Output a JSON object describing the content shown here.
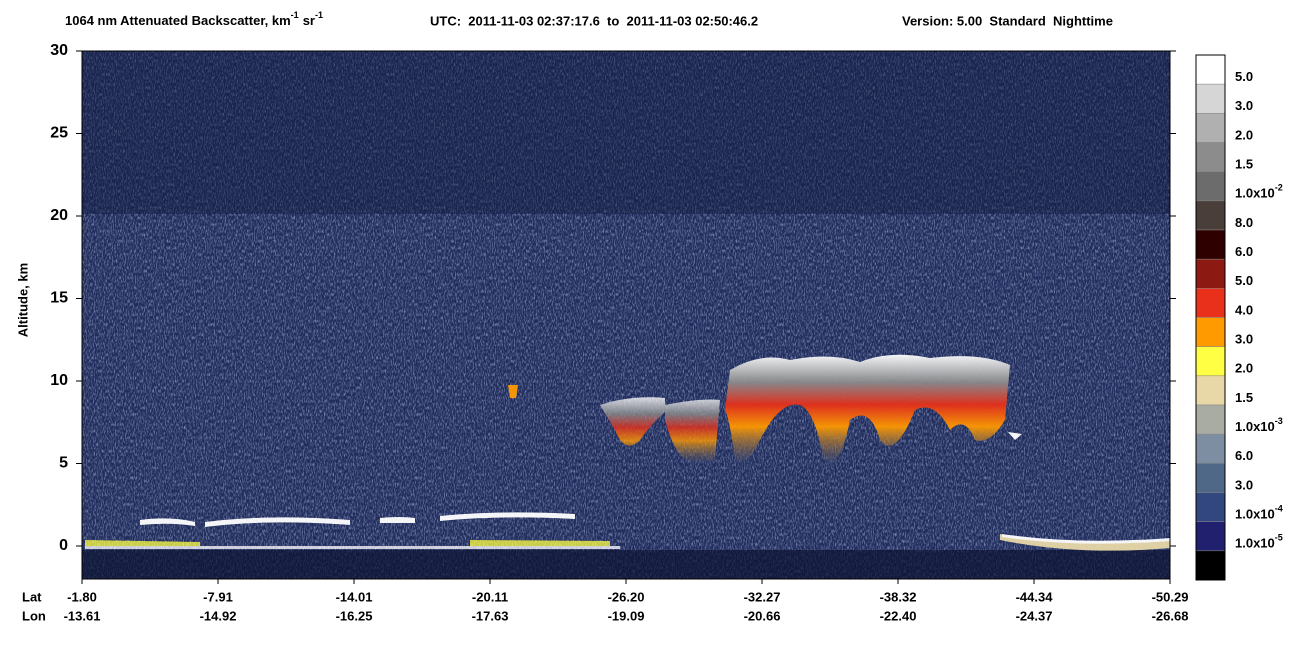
{
  "chart_data": {
    "type": "heatmap",
    "title": {
      "main": "1064 nm Attenuated Backscatter, km",
      "sup1": "-1",
      "unit2": "sr",
      "sup2": "-1",
      "utc": "UTC:  2011-11-03 02:37:17.6  to  2011-11-03 02:50:46.2",
      "version": "Version: 5.00  Standard  Nighttime"
    },
    "ylabel": "Altitude, km",
    "ylim": [
      -2,
      30
    ],
    "yticks": [
      0,
      5,
      10,
      15,
      20,
      25,
      30
    ],
    "x_row_names": [
      "Lat",
      "Lon"
    ],
    "x_labels": {
      "lat": [
        "-1.80",
        "-7.91",
        "-14.01",
        "-20.11",
        "-26.20",
        "-32.27",
        "-38.32",
        "-44.34",
        "-50.29"
      ],
      "lon": [
        "-13.61",
        "-14.92",
        "-16.25",
        "-17.63",
        "-19.09",
        "-20.66",
        "-22.40",
        "-24.37",
        "-26.68"
      ]
    },
    "colorbar": {
      "colors": [
        "#ffffff",
        "#d6d6d6",
        "#b0b0b0",
        "#8c8c8c",
        "#6c6c6c",
        "#4a3e3a",
        "#2e0000",
        "#8c1a12",
        "#e8301a",
        "#ff9a00",
        "#ffff44",
        "#e8d8a8",
        "#a8aca2",
        "#7e8ea2",
        "#506888",
        "#32477f",
        "#20206e",
        "#000000"
      ],
      "labels": [
        {
          "text": "5.0"
        },
        {
          "text": "3.0"
        },
        {
          "text": "2.0"
        },
        {
          "text": "1.5"
        },
        {
          "text": "1.0x10",
          "sup": "-2"
        },
        {
          "text": "8.0"
        },
        {
          "text": "6.0"
        },
        {
          "text": "5.0"
        },
        {
          "text": "4.0"
        },
        {
          "text": "3.0"
        },
        {
          "text": "2.0"
        },
        {
          "text": "1.5"
        },
        {
          "text": "1.0x10",
          "sup": "-3"
        },
        {
          "text": "6.0"
        },
        {
          "text": "3.0"
        },
        {
          "text": "1.0x10",
          "sup": "-4"
        },
        {
          "text": "1.0x10",
          "sup": "-5"
        }
      ]
    }
  }
}
